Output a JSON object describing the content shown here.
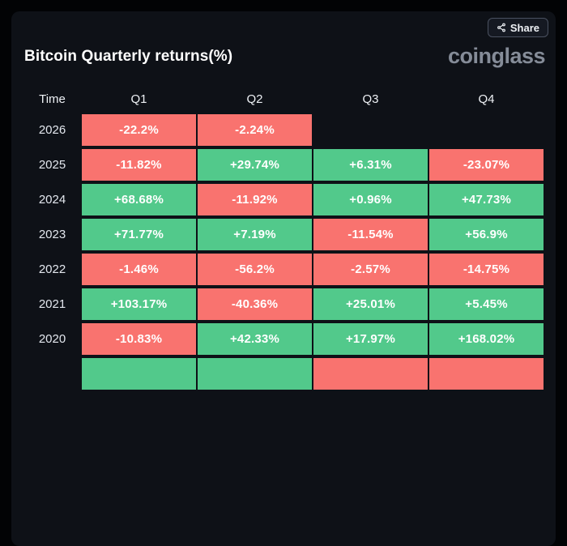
{
  "header": {
    "title": "Bitcoin Quarterly returns(%)",
    "logo": "coinglass",
    "share_label": "Share"
  },
  "colors": {
    "positive": "#52c98b",
    "negative": "#f9736f",
    "card_bg": "#0e1117",
    "page_bg": "#020305"
  },
  "chart_data": {
    "type": "table",
    "title": "Bitcoin Quarterly returns(%)",
    "columns": [
      "Time",
      "Q1",
      "Q2",
      "Q3",
      "Q4"
    ],
    "legend_note": "green = positive quarterly return, red = negative quarterly return",
    "rows": [
      {
        "year": "2026",
        "cells": [
          {
            "v": "-22.2%",
            "s": "neg"
          },
          {
            "v": "-2.24%",
            "s": "neg"
          },
          {
            "v": "",
            "s": "none"
          },
          {
            "v": "",
            "s": "none"
          }
        ]
      },
      {
        "year": "2025",
        "cells": [
          {
            "v": "-11.82%",
            "s": "neg"
          },
          {
            "v": "+29.74%",
            "s": "pos"
          },
          {
            "v": "+6.31%",
            "s": "pos"
          },
          {
            "v": "-23.07%",
            "s": "neg"
          }
        ]
      },
      {
        "year": "2024",
        "cells": [
          {
            "v": "+68.68%",
            "s": "pos"
          },
          {
            "v": "-11.92%",
            "s": "neg"
          },
          {
            "v": "+0.96%",
            "s": "pos"
          },
          {
            "v": "+47.73%",
            "s": "pos"
          }
        ]
      },
      {
        "year": "2023",
        "cells": [
          {
            "v": "+71.77%",
            "s": "pos"
          },
          {
            "v": "+7.19%",
            "s": "pos"
          },
          {
            "v": "-11.54%",
            "s": "neg"
          },
          {
            "v": "+56.9%",
            "s": "pos"
          }
        ]
      },
      {
        "year": "2022",
        "cells": [
          {
            "v": "-1.46%",
            "s": "neg"
          },
          {
            "v": "-56.2%",
            "s": "neg"
          },
          {
            "v": "-2.57%",
            "s": "neg"
          },
          {
            "v": "-14.75%",
            "s": "neg"
          }
        ]
      },
      {
        "year": "2021",
        "cells": [
          {
            "v": "+103.17%",
            "s": "pos"
          },
          {
            "v": "-40.36%",
            "s": "neg"
          },
          {
            "v": "+25.01%",
            "s": "pos"
          },
          {
            "v": "+5.45%",
            "s": "pos"
          }
        ]
      },
      {
        "year": "2020",
        "cells": [
          {
            "v": "-10.83%",
            "s": "neg"
          },
          {
            "v": "+42.33%",
            "s": "pos"
          },
          {
            "v": "+17.97%",
            "s": "pos"
          },
          {
            "v": "+168.02%",
            "s": "pos"
          }
        ]
      },
      {
        "year": "",
        "partial": true,
        "cells": [
          {
            "v": "",
            "s": "pos"
          },
          {
            "v": "",
            "s": "pos"
          },
          {
            "v": "",
            "s": "neg"
          },
          {
            "v": "",
            "s": "neg"
          }
        ]
      }
    ]
  }
}
